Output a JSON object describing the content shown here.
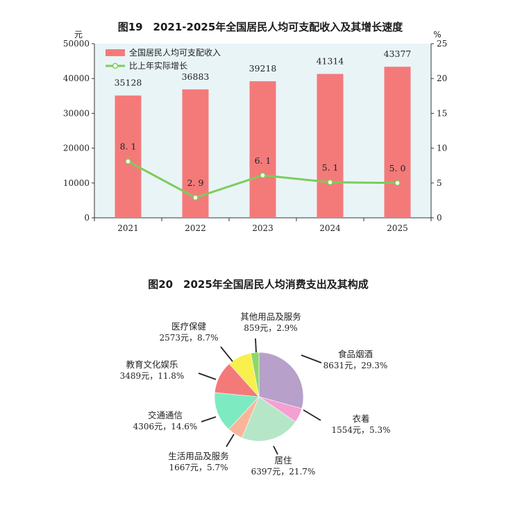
{
  "chart_data": [
    {
      "type": "bar",
      "title": "图19　2021-2025年全国居民人均可支配收入及其增长速度",
      "y_unit_left": "元",
      "y_unit_right": "%",
      "categories": [
        "2021",
        "2022",
        "2023",
        "2024",
        "2025"
      ],
      "ylim_left": [
        0,
        50000
      ],
      "ylim_right": [
        0,
        25
      ],
      "yticks_left": [
        "0",
        "10000",
        "20000",
        "30000",
        "40000",
        "50000"
      ],
      "yticks_right": [
        "0",
        "5",
        "10",
        "15",
        "20",
        "25"
      ],
      "legend_position": "top-left",
      "series": [
        {
          "name": "全国居民人均可支配收入",
          "type": "bar",
          "axis": "left",
          "color": "#f47a7a",
          "values": [
            35128,
            36883,
            39218,
            41314,
            43377
          ],
          "labels": [
            "35128",
            "36883",
            "39218",
            "41314",
            "43377"
          ]
        },
        {
          "name": "比上年实际增长",
          "type": "line",
          "axis": "right",
          "color": "#7dcc5a",
          "values": [
            8.1,
            2.9,
            6.1,
            5.1,
            5.0
          ],
          "labels": [
            "8. 1",
            "2. 9",
            "6. 1",
            "5. 1",
            "5. 0"
          ]
        }
      ],
      "plot_background": "#e9f4f7"
    },
    {
      "type": "pie",
      "title": "图20　2025年全国居民人均消费支出及其构成",
      "slices": [
        {
          "name": "食品烟酒",
          "value": 8631,
          "value_text": "8631元，29.3%",
          "percent": 29.3,
          "color": "#b7a0c9"
        },
        {
          "name": "衣着",
          "value": 1554,
          "value_text": "1554元，5.3%",
          "percent": 5.3,
          "color": "#f59fd3"
        },
        {
          "name": "居住",
          "value": 6397,
          "value_text": "6397元，21.7%",
          "percent": 21.7,
          "color": "#b6e6c8"
        },
        {
          "name": "生活用品及服务",
          "value": 1667,
          "value_text": "1667元，5.7%",
          "percent": 5.7,
          "color": "#f9b59a"
        },
        {
          "name": "交通通信",
          "value": 4306,
          "value_text": "4306元，14.6%",
          "percent": 14.6,
          "color": "#7eeac2"
        },
        {
          "name": "教育文化娱乐",
          "value": 3489,
          "value_text": "3489元，11.8%",
          "percent": 11.8,
          "color": "#f47a7a"
        },
        {
          "name": "医疗保健",
          "value": 2573,
          "value_text": "2573元，8.7%",
          "percent": 8.7,
          "color": "#f8f04d"
        },
        {
          "name": "其他用品及服务",
          "value": 859,
          "value_text": "859元，2.9%",
          "percent": 2.9,
          "color": "#8cd86a"
        }
      ]
    }
  ]
}
